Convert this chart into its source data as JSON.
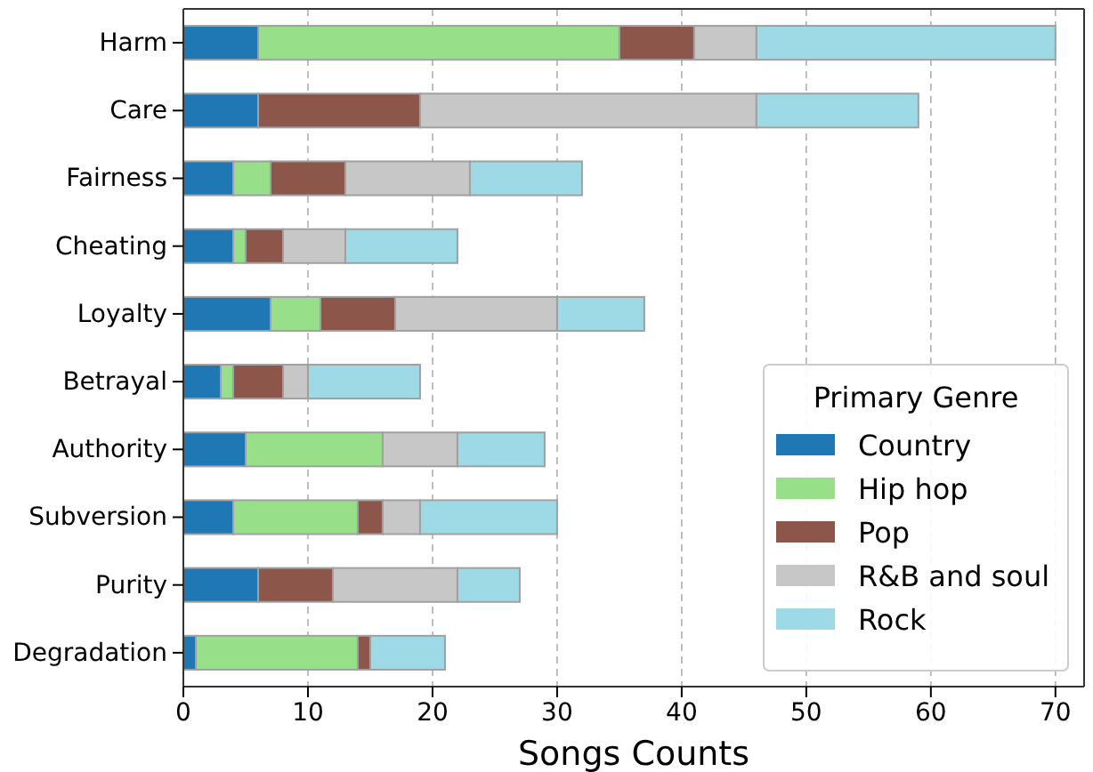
{
  "chart_data": {
    "type": "bar",
    "orientation": "horizontal",
    "stacked": true,
    "xlabel": "Songs Counts",
    "legend_title": "Primary Genre",
    "legend": "bottom right",
    "grid": "x",
    "categories": [
      "Harm",
      "Care",
      "Fairness",
      "Cheating",
      "Loyalty",
      "Betrayal",
      "Authority",
      "Subversion",
      "Purity",
      "Degradation"
    ],
    "xlim": [
      0,
      72.3
    ],
    "xticks": [
      0,
      10,
      20,
      30,
      40,
      50,
      60,
      70
    ],
    "series": [
      {
        "name": "Country",
        "color": "#1f77b4",
        "values": [
          6,
          6,
          4,
          4,
          7,
          3,
          5,
          4,
          6,
          1
        ]
      },
      {
        "name": "Hip hop",
        "color": "#98df8a",
        "values": [
          29,
          0,
          3,
          1,
          4,
          1,
          11,
          10,
          0,
          13
        ]
      },
      {
        "name": "Pop",
        "color": "#8c564b",
        "values": [
          6,
          13,
          6,
          3,
          6,
          4,
          0,
          2,
          6,
          1
        ]
      },
      {
        "name": "R&B and soul",
        "color": "#c7c7c7",
        "values": [
          5,
          27,
          10,
          5,
          13,
          2,
          6,
          3,
          10,
          0
        ]
      },
      {
        "name": "Rock",
        "color": "#9edae5",
        "values": [
          24,
          13,
          9,
          9,
          7,
          9,
          7,
          11,
          5,
          6
        ]
      }
    ]
  }
}
